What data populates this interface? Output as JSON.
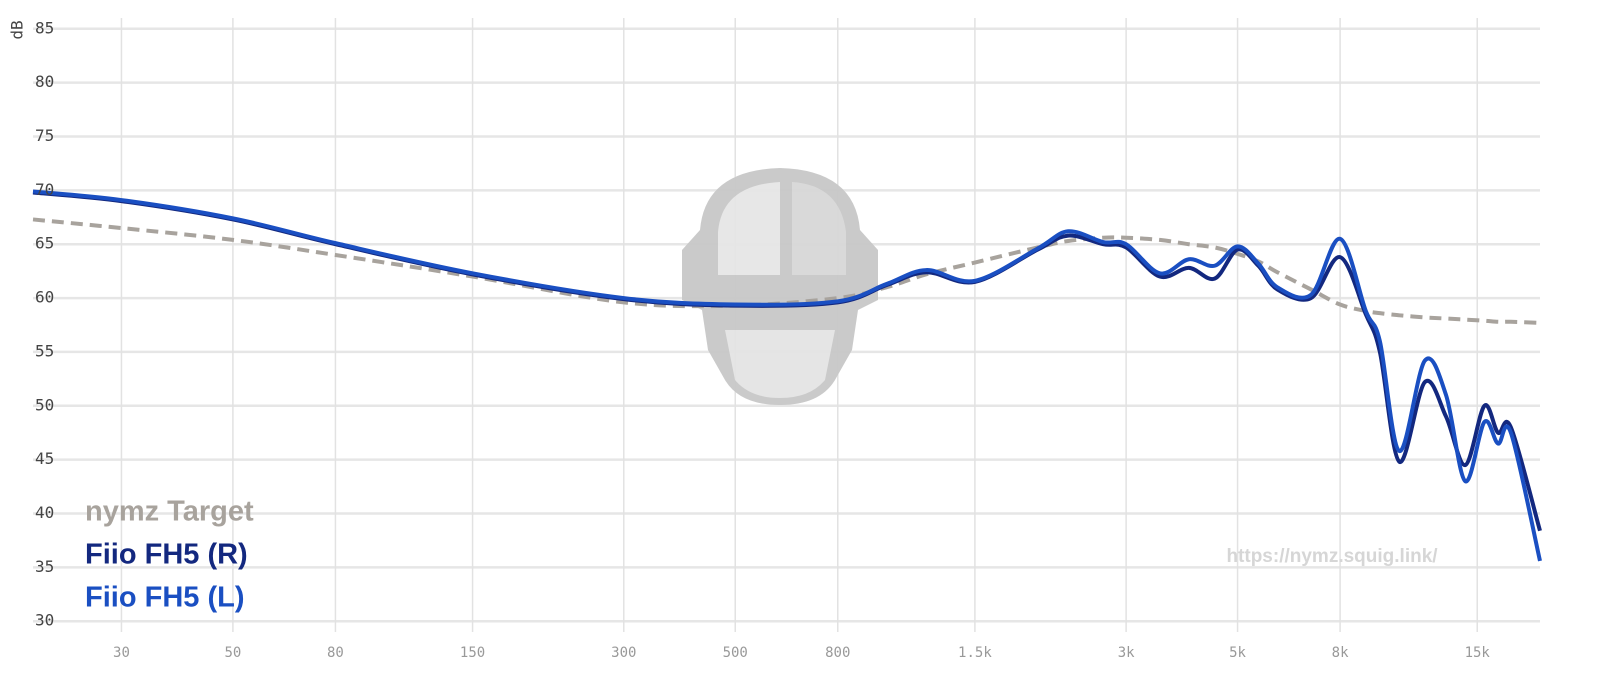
{
  "chart_data": {
    "type": "line",
    "y_label": "dB",
    "annotation": "https://nymz.squig.link/",
    "xscale": "log",
    "grid": true,
    "legend": "lower left",
    "xlim": [
      20,
      20000
    ],
    "ylim": [
      29,
      86
    ],
    "xticks": [
      30,
      50,
      80,
      150,
      300,
      500,
      800,
      {
        "value": 1500,
        "label": "1.5k"
      },
      {
        "value": 3000,
        "label": "3k"
      },
      {
        "value": 5000,
        "label": "5k"
      },
      {
        "value": 8000,
        "label": "8k"
      },
      {
        "value": 15000,
        "label": "15k"
      }
    ],
    "yticks": [
      30,
      35,
      40,
      45,
      50,
      55,
      60,
      65,
      70,
      75,
      80,
      85
    ],
    "x": [
      20,
      30,
      50,
      80,
      150,
      300,
      500,
      800,
      1000,
      1200,
      1500,
      2000,
      2300,
      2700,
      3000,
      3500,
      4000,
      4500,
      5000,
      5500,
      6000,
      7000,
      8000,
      9000,
      9600,
      10500,
      11800,
      13000,
      14200,
      15500,
      16500,
      17500,
      20000
    ],
    "series": [
      {
        "name": "nymz Target",
        "color": "#a8a39d",
        "line_style": "dashed",
        "values": [
          67.3,
          66.5,
          65.4,
          64.0,
          62.0,
          59.6,
          59.3,
          60.0,
          61.0,
          62.2,
          63.3,
          64.7,
          65.3,
          65.6,
          65.6,
          65.4,
          65.0,
          64.7,
          64.1,
          63.4,
          62.4,
          60.8,
          59.4,
          58.8,
          58.6,
          58.4,
          58.2,
          58.1,
          58.0,
          57.9,
          57.8,
          57.8,
          57.7
        ]
      },
      {
        "name": "Fiio FH5 (R)",
        "color": "#13287f",
        "line_style": "solid",
        "values": [
          69.8,
          69.0,
          67.3,
          65.0,
          62.2,
          59.9,
          59.3,
          59.6,
          61.2,
          62.4,
          61.5,
          64.5,
          65.8,
          65.0,
          64.7,
          62.0,
          62.8,
          61.8,
          64.5,
          63.0,
          60.8,
          60.0,
          63.8,
          58.5,
          55.0,
          44.8,
          52.2,
          49.0,
          44.5,
          50.0,
          47.5,
          48.0,
          38.4
        ]
      },
      {
        "name": "Fiio FH5 (L)",
        "color": "#1a4fc2",
        "line_style": "solid",
        "values": [
          69.9,
          69.1,
          67.4,
          65.1,
          62.3,
          60.0,
          59.4,
          59.7,
          61.3,
          62.6,
          61.6,
          64.6,
          66.2,
          65.2,
          65.0,
          62.3,
          63.6,
          63.0,
          64.8,
          63.2,
          61.0,
          60.3,
          65.5,
          58.8,
          56.0,
          45.8,
          54.2,
          51.0,
          43.0,
          48.5,
          46.5,
          47.5,
          35.6
        ]
      }
    ]
  }
}
